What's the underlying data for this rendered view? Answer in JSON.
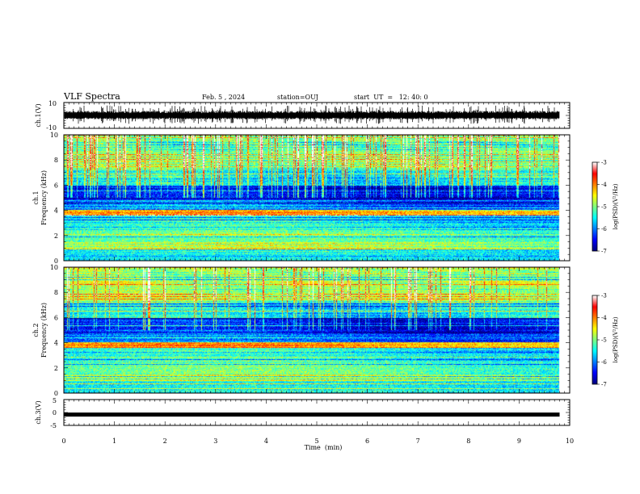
{
  "header": {
    "title": "VLF Spectra",
    "date": "Feb. 5  , 2024",
    "station": "station=OUJ",
    "start_ut": "start  UT  =   12: 40: 0"
  },
  "chart_data": [
    {
      "id": "ch1_waveform",
      "type": "line",
      "ylabel": "ch.1(V)",
      "ylim": [
        -10,
        10
      ],
      "yticks": [
        "10",
        "-10"
      ],
      "xlim": [
        0,
        10
      ],
      "data_end_min": 9.8,
      "line_color": "#000000",
      "description_level": {
        "mean": 0,
        "envelope_low": -3,
        "envelope_high": 3.5
      }
    },
    {
      "id": "ch1_spectrogram",
      "type": "heatmap",
      "ylabel": "ch.1",
      "ylabel2": "Frequency  (kHz)",
      "ylim": [
        0,
        10
      ],
      "yticks": [
        "0",
        "2",
        "4",
        "6",
        "8",
        "10"
      ],
      "xlim": [
        0,
        10
      ],
      "data_end_min": 9.8,
      "colorbar": {
        "label": "log(PSD)(V²/Hz)",
        "range": [
          -7,
          -3
        ],
        "ticks": [
          "-3",
          "-4",
          "-5",
          "-6",
          "-7"
        ]
      }
    },
    {
      "id": "ch2_spectrogram",
      "type": "heatmap",
      "ylabel": "ch.2",
      "ylabel2": "Frequency  (kHz)",
      "ylim": [
        0,
        10
      ],
      "yticks": [
        "0",
        "2",
        "4",
        "6",
        "8",
        "10"
      ],
      "xlim": [
        0,
        10
      ],
      "data_end_min": 9.8,
      "colorbar": {
        "label": "log(PSD)(V²/Hz)",
        "range": [
          -7,
          -3
        ],
        "ticks": [
          "-3",
          "-4",
          "-5",
          "-6",
          "-7"
        ]
      }
    },
    {
      "id": "ch3_waveform",
      "type": "line",
      "ylabel": "ch.3(V)",
      "ylim": [
        -5,
        5
      ],
      "yticks": [
        "5",
        "0",
        "-5"
      ],
      "xlim": [
        0,
        10
      ],
      "data_end_min": 9.8,
      "constant_value": -0.8,
      "line_color": "#000000"
    }
  ],
  "x_axis": {
    "label": "Time  (min)",
    "ticks": [
      "0",
      "1",
      "2",
      "3",
      "4",
      "5",
      "6",
      "7",
      "8",
      "9",
      "10"
    ],
    "range": [
      0,
      10
    ]
  },
  "colors": {
    "colormap": [
      "#00007f",
      "#0000ff",
      "#0080ff",
      "#00ffff",
      "#80ff80",
      "#ffff00",
      "#ff8000",
      "#ff0000",
      "#ffffff"
    ]
  }
}
